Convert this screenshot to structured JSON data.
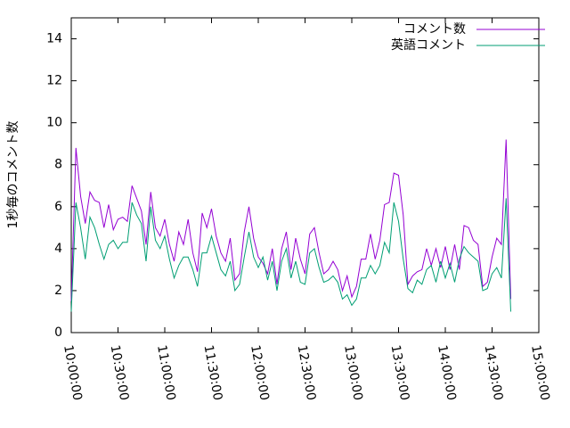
{
  "chart_data": {
    "type": "line",
    "y_label": "1秒毎のコメント数",
    "x": [
      "10:00:00",
      "10:03:00",
      "10:06:00",
      "10:09:00",
      "10:12:00",
      "10:15:00",
      "10:18:00",
      "10:21:00",
      "10:24:00",
      "10:27:00",
      "10:30:00",
      "10:33:00",
      "10:36:00",
      "10:39:00",
      "10:42:00",
      "10:45:00",
      "10:48:00",
      "10:51:00",
      "10:54:00",
      "10:57:00",
      "11:00:00",
      "11:03:00",
      "11:06:00",
      "11:09:00",
      "11:12:00",
      "11:15:00",
      "11:18:00",
      "11:21:00",
      "11:24:00",
      "11:27:00",
      "11:30:00",
      "11:33:00",
      "11:36:00",
      "11:39:00",
      "11:42:00",
      "11:45:00",
      "11:48:00",
      "11:51:00",
      "11:54:00",
      "11:57:00",
      "12:00:00",
      "12:03:00",
      "12:06:00",
      "12:09:00",
      "12:12:00",
      "12:15:00",
      "12:18:00",
      "12:21:00",
      "12:24:00",
      "12:27:00",
      "12:30:00",
      "12:33:00",
      "12:36:00",
      "12:39:00",
      "12:42:00",
      "12:45:00",
      "12:48:00",
      "12:51:00",
      "12:54:00",
      "12:57:00",
      "13:00:00",
      "13:03:00",
      "13:06:00",
      "13:09:00",
      "13:12:00",
      "13:15:00",
      "13:18:00",
      "13:21:00",
      "13:24:00",
      "13:27:00",
      "13:30:00",
      "13:33:00",
      "13:36:00",
      "13:39:00",
      "13:42:00",
      "13:45:00",
      "13:48:00",
      "13:51:00",
      "13:54:00",
      "13:57:00",
      "14:00:00",
      "14:03:00",
      "14:06:00",
      "14:09:00",
      "14:12:00",
      "14:15:00",
      "14:18:00",
      "14:21:00",
      "14:24:00",
      "14:27:00",
      "14:30:00",
      "14:33:00",
      "14:36:00",
      "14:39:00",
      "14:42:00"
    ],
    "series": [
      {
        "name": "コメント数",
        "color": "#9400d3",
        "values": [
          1.5,
          8.8,
          6.5,
          5.2,
          6.7,
          6.3,
          6.2,
          5.0,
          6.1,
          4.9,
          5.4,
          5.5,
          5.3,
          7.0,
          6.4,
          5.8,
          4.2,
          6.7,
          5.0,
          4.6,
          5.4,
          4.2,
          3.4,
          4.8,
          4.2,
          5.4,
          3.8,
          2.9,
          5.7,
          5.0,
          5.9,
          4.6,
          3.8,
          3.4,
          4.5,
          2.5,
          2.8,
          4.8,
          6.0,
          4.5,
          3.6,
          3.3,
          2.8,
          4.0,
          2.3,
          4.0,
          4.8,
          3.0,
          4.5,
          3.5,
          2.8,
          4.7,
          5.0,
          3.8,
          2.8,
          3.0,
          3.4,
          3.0,
          2.0,
          2.7,
          1.7,
          2.2,
          3.5,
          3.5,
          4.7,
          3.5,
          4.4,
          6.1,
          6.2,
          7.6,
          7.5,
          5.6,
          2.3,
          2.7,
          2.9,
          3.0,
          4.0,
          3.2,
          4.0,
          3.1,
          4.1,
          3.0,
          4.2,
          3.0,
          5.1,
          5.0,
          4.4,
          4.2,
          2.2,
          2.4,
          3.6,
          4.5,
          4.2,
          9.2,
          1.6
        ]
      },
      {
        "name": "英語コメント",
        "color": "#009e73",
        "values": [
          1.0,
          6.2,
          5.0,
          3.5,
          5.5,
          5.0,
          4.2,
          3.5,
          4.2,
          4.4,
          4.0,
          4.3,
          4.3,
          6.2,
          5.6,
          5.2,
          3.4,
          6.0,
          4.4,
          4.0,
          4.6,
          3.5,
          2.6,
          3.2,
          3.6,
          3.6,
          3.0,
          2.2,
          3.8,
          3.8,
          4.6,
          3.8,
          3.0,
          2.7,
          3.4,
          2.0,
          2.3,
          3.6,
          4.8,
          3.6,
          3.1,
          3.6,
          2.5,
          3.4,
          2.0,
          3.4,
          4.0,
          2.6,
          3.4,
          2.4,
          2.3,
          3.8,
          4.0,
          3.1,
          2.4,
          2.5,
          2.7,
          2.4,
          1.6,
          1.8,
          1.3,
          1.6,
          2.6,
          2.6,
          3.2,
          2.8,
          3.2,
          4.3,
          3.8,
          6.2,
          5.3,
          3.5,
          2.1,
          1.9,
          2.5,
          2.3,
          3.0,
          3.2,
          2.4,
          3.4,
          2.6,
          3.3,
          2.4,
          3.5,
          4.1,
          3.8,
          3.6,
          3.4,
          2.0,
          2.1,
          2.8,
          3.1,
          2.6,
          6.4,
          1.0
        ]
      }
    ],
    "xlim": [
      "10:00:00",
      "15:00:00"
    ],
    "xticks": [
      "10:00:00",
      "10:30:00",
      "11:00:00",
      "11:30:00",
      "12:00:00",
      "12:30:00",
      "13:00:00",
      "13:30:00",
      "14:00:00",
      "14:30:00",
      "15:00:00"
    ],
    "ylim": [
      0,
      15
    ],
    "yticks": [
      0,
      2,
      4,
      6,
      8,
      10,
      12,
      14
    ],
    "legend": "top-right"
  }
}
